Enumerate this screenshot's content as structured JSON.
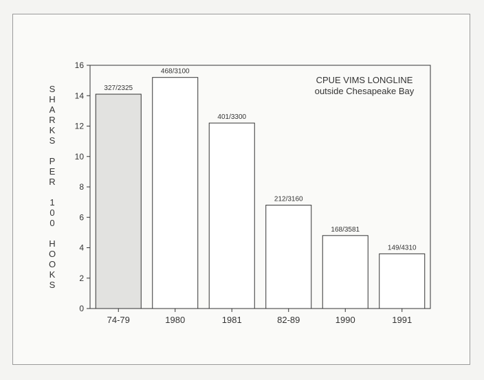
{
  "chart_data": {
    "type": "bar",
    "title": "CPUE VIMS LONGLINE",
    "subtitle": "outside Chesapeake Bay",
    "xlabel": "",
    "ylabel": "SHARKS PER 100 HOOKS",
    "ylim": [
      0,
      16
    ],
    "yticks": [
      0,
      2,
      4,
      6,
      8,
      10,
      12,
      14,
      16
    ],
    "categories": [
      "74-79",
      "1980",
      "1981",
      "82-89",
      "1990",
      "1991"
    ],
    "values": [
      14.1,
      15.2,
      12.2,
      6.8,
      4.8,
      3.6
    ],
    "data_labels": [
      "327/2325",
      "468/3100",
      "401/3300",
      "212/3160",
      "168/3581",
      "149/4310"
    ],
    "grid": false,
    "legend": "none",
    "colors": {
      "bar_stroke": "#333333",
      "bar_fill": "#ffffff",
      "first_bar_fill": "#e2e2e0",
      "axis": "#333333"
    }
  }
}
